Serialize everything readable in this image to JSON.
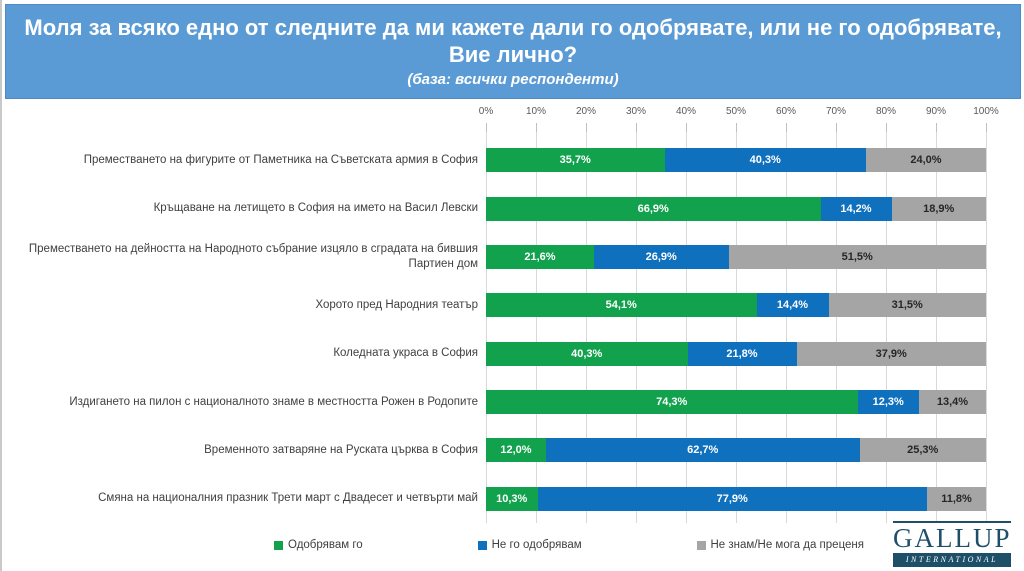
{
  "header": {
    "title_line1": "Моля за всяко едно от следните да ми кажете дали го одобрявате, или не го одобрявате,",
    "title_line2": "Вие лично?",
    "subtitle": "(база: всички респонденти)",
    "banner_color": "#5B9BD5"
  },
  "chart_data": {
    "type": "bar",
    "orientation": "horizontal",
    "stacked": true,
    "unit": "%",
    "decimal_separator": ",",
    "xlim": [
      0,
      100
    ],
    "x_ticks": [
      "0%",
      "10%",
      "20%",
      "30%",
      "40%",
      "50%",
      "60%",
      "70%",
      "80%",
      "90%",
      "100%"
    ],
    "grid": true,
    "legend_position": "bottom",
    "categories": [
      "Преместването на фигурите от Паметника на Съветската армия в София",
      "Кръщаване на летището в София на името на Васил Левски",
      "Преместването на дейността на Народното събрание изцяло в сградата на бившия Партиен дом",
      "Хорото пред Народния театър",
      "Коледната украса в София",
      "Издигането на пилон с националното знаме в местността Рожен в Родопите",
      "Временното затваряне на Руската църква в София",
      "Смяна на националния празник Трети март с Двадесет и четвърти май"
    ],
    "series": [
      {
        "key": "approve",
        "name": "Одобрявам го",
        "color": "#12A14D",
        "label_color": "#FFFFFF",
        "values": [
          35.7,
          66.9,
          21.6,
          54.1,
          40.3,
          74.3,
          12.0,
          10.3
        ],
        "labels": [
          "35,7%",
          "66,9%",
          "21,6%",
          "54,1%",
          "40,3%",
          "74,3%",
          "12,0%",
          "10,3%"
        ]
      },
      {
        "key": "disapprove",
        "name": "Не го одобрявам",
        "color": "#0F70BE",
        "label_color": "#FFFFFF",
        "values": [
          40.3,
          14.2,
          26.9,
          14.4,
          21.8,
          12.3,
          62.7,
          77.9
        ],
        "labels": [
          "40,3%",
          "14,2%",
          "26,9%",
          "14,4%",
          "21,8%",
          "12,3%",
          "62,7%",
          "77,9%"
        ]
      },
      {
        "key": "dont-know",
        "name": "Не знам/Не мога да преценя",
        "color": "#A5A5A5",
        "label_color": "#262626",
        "values": [
          24.0,
          18.9,
          51.5,
          31.5,
          37.9,
          13.4,
          25.3,
          11.8
        ],
        "labels": [
          "24,0%",
          "18,9%",
          "51,5%",
          "31,5%",
          "37,9%",
          "13,4%",
          "25,3%",
          "11,8%"
        ]
      }
    ]
  },
  "logo": {
    "name": "GALLUP",
    "subname": "INTERNATIONAL"
  }
}
